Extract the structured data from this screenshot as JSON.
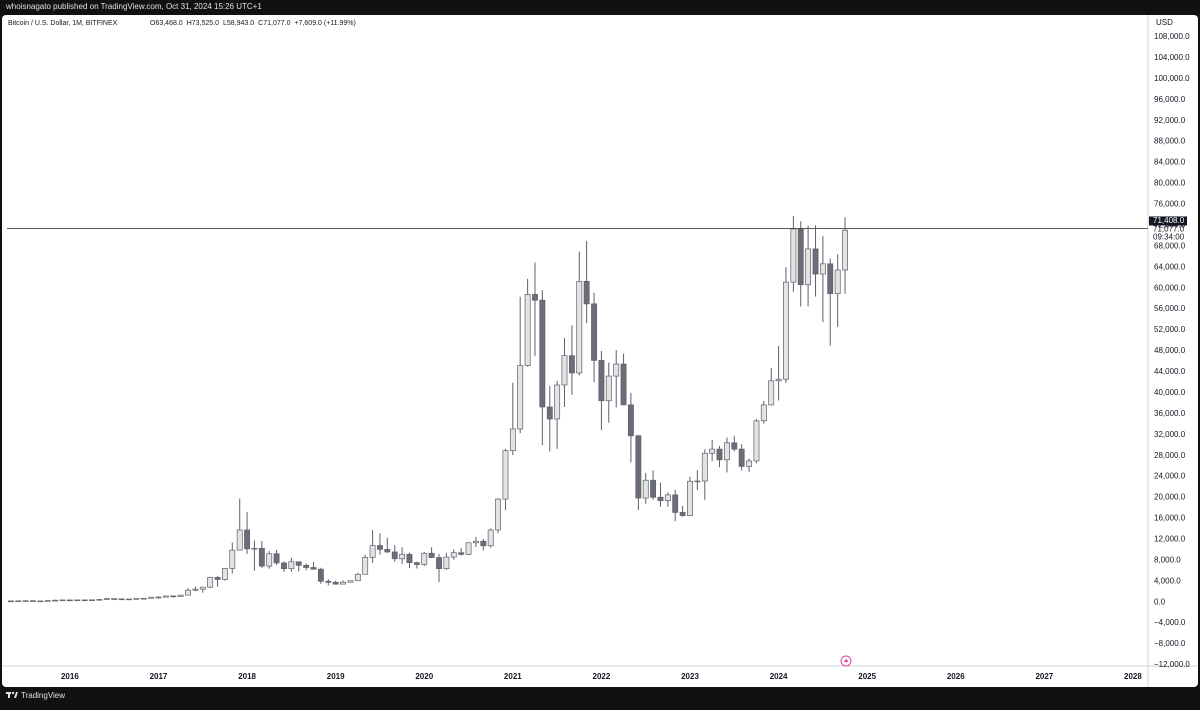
{
  "header": {
    "published": "whoisnagato published on TradingView.com, Oct 31, 2024 15:26 UTC+1"
  },
  "footer": {
    "brand": "TradingView"
  },
  "chart_data": {
    "type": "candlestick",
    "title": "Bitcoin / U.S. Dollar, 1M, BITFINEX",
    "ohlc_legend": [
      "O63,468.0",
      "H73,525.0",
      "L58,943.0",
      "C71,077.0",
      "+7,609.0 (+11.99%)"
    ],
    "y_unit": "USD",
    "up_color": "#e3e3e3",
    "down_color": "#6b6e78",
    "wick_color": "#5d606b",
    "grid": false,
    "xlim": [
      2015.29,
      2028.17
    ],
    "xticks": [
      2016,
      2017,
      2018,
      2019,
      2020,
      2021,
      2022,
      2023,
      2024,
      2025,
      2026,
      2027,
      2028
    ],
    "ylim": [
      -12000,
      112000
    ],
    "yticks": [
      {
        "value": -12000,
        "label": "−12,000.0"
      },
      {
        "value": -8000,
        "label": "−8,000.0"
      },
      {
        "value": -4000,
        "label": "−4,000.0"
      },
      {
        "value": 0,
        "label": "0.0"
      },
      {
        "value": 4000,
        "label": "4,000.0"
      },
      {
        "value": 8000,
        "label": "8,000.0"
      },
      {
        "value": 12000,
        "label": "12,000.0"
      },
      {
        "value": 16000,
        "label": "16,000.0"
      },
      {
        "value": 20000,
        "label": "20,000.0"
      },
      {
        "value": 24000,
        "label": "24,000.0"
      },
      {
        "value": 28000,
        "label": "28,000.0"
      },
      {
        "value": 32000,
        "label": "32,000.0"
      },
      {
        "value": 36000,
        "label": "36,000.0"
      },
      {
        "value": 40000,
        "label": "40,000.0"
      },
      {
        "value": 44000,
        "label": "44,000.0"
      },
      {
        "value": 48000,
        "label": "48,000.0"
      },
      {
        "value": 52000,
        "label": "52,000.0"
      },
      {
        "value": 56000,
        "label": "56,000.0"
      },
      {
        "value": 60000,
        "label": "60,000.0"
      },
      {
        "value": 64000,
        "label": "64,000.0"
      },
      {
        "value": 68000,
        "label": "68,000.0"
      },
      {
        "value": 72000,
        "label": "72,000.0"
      },
      {
        "value": 76000,
        "label": "76,000.0"
      },
      {
        "value": 80000,
        "label": "80,000.0"
      },
      {
        "value": 84000,
        "label": "84,000.0"
      },
      {
        "value": 88000,
        "label": "88,000.0"
      },
      {
        "value": 92000,
        "label": "92,000.0"
      },
      {
        "value": 96000,
        "label": "96,000.0"
      },
      {
        "value": 100000,
        "label": "100,000.0"
      },
      {
        "value": 104000,
        "label": "104,000.0"
      },
      {
        "value": 108000,
        "label": "108,000.0"
      }
    ],
    "price_line": {
      "value": 71408,
      "label": "71,408.0"
    },
    "last_price": {
      "value": 71077,
      "label": "71,077.0"
    },
    "countdown": "09:34:00",
    "x": [
      2015.333,
      2015.417,
      2015.5,
      2015.583,
      2015.667,
      2015.75,
      2015.833,
      2015.917,
      2016,
      2016.083,
      2016.167,
      2016.25,
      2016.333,
      2016.417,
      2016.5,
      2016.583,
      2016.667,
      2016.75,
      2016.833,
      2016.917,
      2017,
      2017.083,
      2017.167,
      2017.25,
      2017.333,
      2017.417,
      2017.5,
      2017.583,
      2017.667,
      2017.75,
      2017.833,
      2017.917,
      2018,
      2018.083,
      2018.167,
      2018.25,
      2018.333,
      2018.417,
      2018.5,
      2018.583,
      2018.667,
      2018.75,
      2018.833,
      2018.917,
      2019,
      2019.083,
      2019.167,
      2019.25,
      2019.333,
      2019.417,
      2019.5,
      2019.583,
      2019.667,
      2019.75,
      2019.833,
      2019.917,
      2020,
      2020.083,
      2020.167,
      2020.25,
      2020.333,
      2020.417,
      2020.5,
      2020.583,
      2020.667,
      2020.75,
      2020.833,
      2020.917,
      2021,
      2021.083,
      2021.167,
      2021.25,
      2021.333,
      2021.417,
      2021.5,
      2021.583,
      2021.667,
      2021.75,
      2021.833,
      2021.917,
      2022,
      2022.083,
      2022.167,
      2022.25,
      2022.333,
      2022.417,
      2022.5,
      2022.583,
      2022.667,
      2022.75,
      2022.833,
      2022.917,
      2023,
      2023.083,
      2023.167,
      2023.25,
      2023.333,
      2023.417,
      2023.5,
      2023.583,
      2023.667,
      2023.75,
      2023.833,
      2023.917,
      2024,
      2024.083,
      2024.167,
      2024.25,
      2024.333,
      2024.417,
      2024.5,
      2024.583,
      2024.667,
      2024.75
    ],
    "open": [
      236,
      230,
      264,
      284,
      230,
      236,
      314,
      377,
      430,
      369,
      437,
      416,
      448,
      531,
      673,
      624,
      574,
      609,
      700,
      742,
      963,
      970,
      1190,
      1080,
      1350,
      2300,
      2480,
      2870,
      4730,
      4340,
      6440,
      9950,
      13800,
      10200,
      10300,
      6900,
      9250,
      7500,
      6400,
      7730,
      7040,
      6630,
      6300,
      4000,
      3800,
      3450,
      3820,
      4100,
      5330,
      8560,
      10820,
      10090,
      9600,
      8300,
      9150,
      7550,
      7200,
      9350,
      8530,
      6410,
      8620,
      9450,
      9140,
      11350,
      11650,
      10780,
      13800,
      19700,
      28950,
      33100,
      45200,
      58800,
      57700,
      37300,
      35000,
      41500,
      47100,
      43800,
      61300,
      57000,
      46200,
      38500,
      43200,
      45500,
      37700,
      31800,
      19900,
      23300,
      20050,
      19400,
      20500,
      17150,
      16550,
      23100,
      23150,
      28450,
      29250,
      27200,
      30450,
      29250,
      25950,
      27000,
      34650,
      37700,
      42300,
      42600,
      61150,
      71300,
      60650,
      67500,
      62700,
      64650,
      58950,
      63468
    ],
    "high": [
      247,
      268,
      318,
      286,
      263,
      334,
      502,
      466,
      463,
      448,
      440,
      468,
      550,
      780,
      704,
      626,
      630,
      720,
      760,
      975,
      1160,
      1200,
      1300,
      1400,
      2700,
      2990,
      2920,
      4760,
      5000,
      6470,
      11400,
      19800,
      17200,
      11800,
      11700,
      9800,
      10000,
      7800,
      8500,
      7760,
      7400,
      7700,
      6580,
      4400,
      4100,
      4200,
      4120,
      5600,
      9100,
      13800,
      13200,
      12300,
      10900,
      10500,
      9500,
      7750,
      9600,
      10500,
      9200,
      9470,
      10080,
      10400,
      11450,
      12480,
      12090,
      14100,
      19900,
      29300,
      41950,
      58350,
      61800,
      64900,
      59600,
      41300,
      42300,
      50500,
      52900,
      67000,
      69000,
      59100,
      48000,
      45800,
      48200,
      47500,
      40000,
      32000,
      24700,
      25200,
      22800,
      21000,
      21500,
      18400,
      23950,
      25250,
      29200,
      31000,
      29850,
      31450,
      31800,
      30200,
      27500,
      35000,
      38450,
      44750,
      48950,
      64000,
      73800,
      72800,
      71950,
      72000,
      70000,
      65650,
      66500,
      73525
    ],
    "low": [
      228,
      220,
      253,
      198,
      226,
      236,
      300,
      350,
      350,
      366,
      393,
      412,
      436,
      520,
      600,
      470,
      570,
      604,
      690,
      740,
      750,
      920,
      890,
      1060,
      1350,
      2100,
      1830,
      2670,
      2970,
      4110,
      5500,
      9900,
      9200,
      6000,
      6500,
      6400,
      7100,
      5800,
      5800,
      5880,
      6100,
      6200,
      3500,
      3200,
      3350,
      3380,
      3730,
      4050,
      5300,
      7500,
      9100,
      9400,
      7700,
      7300,
      6500,
      6430,
      6900,
      8450,
      3850,
      6150,
      8100,
      8900,
      8980,
      10540,
      9880,
      10400,
      13200,
      17600,
      28100,
      32300,
      45000,
      47000,
      30000,
      28800,
      29300,
      37300,
      39600,
      43300,
      53300,
      42000,
      32900,
      34300,
      37200,
      37700,
      26700,
      17600,
      18800,
      19600,
      18200,
      18200,
      15500,
      16300,
      16500,
      21400,
      19550,
      26950,
      25800,
      24800,
      28850,
      25150,
      24900,
      26550,
      34100,
      37600,
      38550,
      41900,
      59300,
      56500,
      56550,
      58400,
      53500,
      49000,
      52600,
      58943
    ],
    "close": [
      230,
      264,
      284,
      230,
      236,
      314,
      377,
      430,
      369,
      437,
      416,
      448,
      531,
      673,
      624,
      574,
      609,
      700,
      742,
      963,
      970,
      1190,
      1080,
      1350,
      2300,
      2480,
      2870,
      4730,
      4340,
      6440,
      9950,
      13800,
      10200,
      10300,
      6900,
      9250,
      7500,
      6400,
      7730,
      7040,
      6630,
      6300,
      4000,
      3800,
      3450,
      3820,
      4100,
      5330,
      8560,
      10820,
      10090,
      9600,
      8300,
      9150,
      7550,
      7200,
      9350,
      8530,
      6410,
      8620,
      9450,
      9140,
      11350,
      11650,
      10780,
      13800,
      19700,
      28950,
      33100,
      45200,
      58800,
      57700,
      37300,
      35000,
      41500,
      47100,
      43800,
      61300,
      57000,
      46200,
      38500,
      43200,
      45500,
      37700,
      31800,
      19900,
      23300,
      20050,
      19400,
      20500,
      17150,
      16550,
      23100,
      23150,
      28450,
      29250,
      27200,
      30450,
      29250,
      25950,
      27000,
      34650,
      37700,
      42300,
      42600,
      61150,
      71300,
      60650,
      67500,
      62700,
      64650,
      58950,
      63468,
      71077
    ]
  }
}
